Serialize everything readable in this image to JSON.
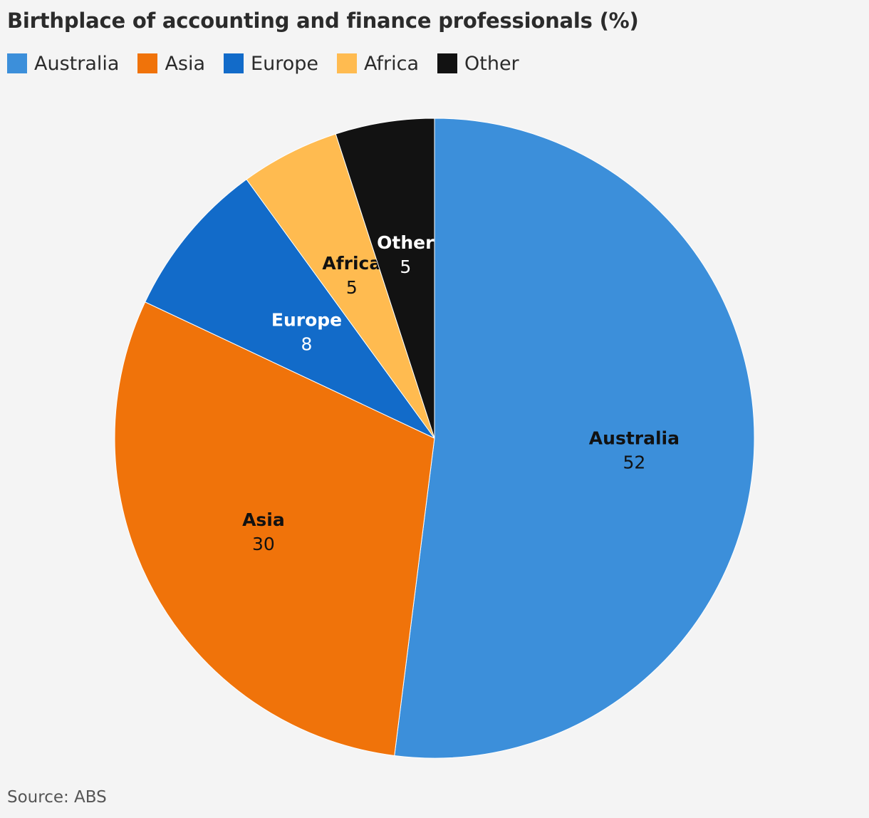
{
  "source": "Source: ABS",
  "chart_data": {
    "type": "pie",
    "title": "Birthplace of accounting and finance professionals (%)",
    "legend_position": "top-left",
    "slices": [
      {
        "label": "Australia",
        "value": 52,
        "color": "#3c8fda",
        "label_color": "#111111"
      },
      {
        "label": "Asia",
        "value": 30,
        "color": "#f0730a",
        "label_color": "#111111"
      },
      {
        "label": "Europe",
        "value": 8,
        "color": "#126bc9",
        "label_color": "#ffffff"
      },
      {
        "label": "Africa",
        "value": 5,
        "color": "#ffbb50",
        "label_color": "#111111"
      },
      {
        "label": "Other",
        "value": 5,
        "color": "#121212",
        "label_color": "#ffffff"
      }
    ]
  }
}
